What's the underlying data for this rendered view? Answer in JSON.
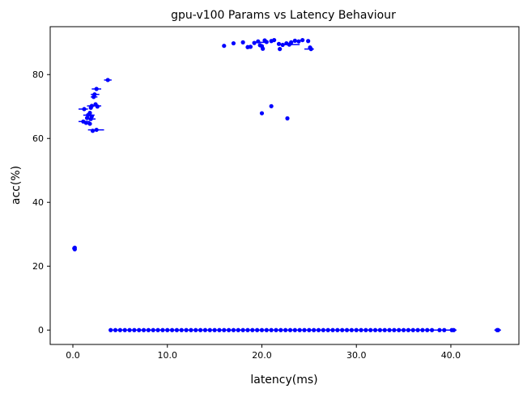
{
  "chart_data": {
    "type": "scatter",
    "title": "gpu-v100 Params vs Latency Behaviour",
    "xlabel": "latency(ms)",
    "ylabel": "acc(%)",
    "xlim": [
      -2.4,
      47.2
    ],
    "ylim": [
      -4.5,
      95.0
    ],
    "xticks": [
      0.0,
      10.0,
      20.0,
      30.0,
      40.0
    ],
    "xtick_labels": [
      "0.0",
      "10.0",
      "20.0",
      "30.0",
      "40.0"
    ],
    "yticks": [
      0,
      20,
      40,
      60,
      80
    ],
    "ytick_labels": [
      "0",
      "20",
      "40",
      "60",
      "80"
    ],
    "grid": false,
    "marker_color": "#0000ff",
    "series": [
      {
        "points": [
          {
            "x": 0.2,
            "y": 25.8
          },
          {
            "x": 0.2,
            "y": 25.3
          },
          {
            "x": 0.15,
            "y": 25.6
          },
          {
            "x": 3.7,
            "y": 78.3
          },
          {
            "x": 2.5,
            "y": 75.5
          },
          {
            "x": 2.3,
            "y": 73.8
          },
          {
            "x": 2.2,
            "y": 73.0
          },
          {
            "x": 2.4,
            "y": 70.7
          },
          {
            "x": 2.0,
            "y": 70.2
          },
          {
            "x": 2.6,
            "y": 70.0
          },
          {
            "x": 1.2,
            "y": 69.2
          },
          {
            "x": 1.9,
            "y": 69.6
          },
          {
            "x": 1.8,
            "y": 68.0
          },
          {
            "x": 1.6,
            "y": 67.3
          },
          {
            "x": 2.0,
            "y": 66.9
          },
          {
            "x": 1.5,
            "y": 66.4
          },
          {
            "x": 1.9,
            "y": 66.1
          },
          {
            "x": 1.1,
            "y": 65.3
          },
          {
            "x": 1.4,
            "y": 64.9
          },
          {
            "x": 1.8,
            "y": 64.6
          },
          {
            "x": 2.5,
            "y": 62.7
          },
          {
            "x": 2.1,
            "y": 62.4
          },
          {
            "x": 16.0,
            "y": 89.0
          },
          {
            "x": 17.0,
            "y": 89.8
          },
          {
            "x": 18.0,
            "y": 90.1
          },
          {
            "x": 18.5,
            "y": 88.6
          },
          {
            "x": 18.8,
            "y": 88.7
          },
          {
            "x": 19.2,
            "y": 89.9
          },
          {
            "x": 19.6,
            "y": 90.4
          },
          {
            "x": 19.8,
            "y": 89.2
          },
          {
            "x": 20.0,
            "y": 88.9
          },
          {
            "x": 20.1,
            "y": 88.1
          },
          {
            "x": 20.3,
            "y": 90.7
          },
          {
            "x": 20.5,
            "y": 90.2
          },
          {
            "x": 21.0,
            "y": 90.5
          },
          {
            "x": 21.3,
            "y": 90.8
          },
          {
            "x": 21.8,
            "y": 89.6
          },
          {
            "x": 21.9,
            "y": 88.0
          },
          {
            "x": 22.2,
            "y": 89.3
          },
          {
            "x": 22.6,
            "y": 89.8
          },
          {
            "x": 22.9,
            "y": 89.4
          },
          {
            "x": 23.1,
            "y": 90.1
          },
          {
            "x": 23.5,
            "y": 90.6
          },
          {
            "x": 23.9,
            "y": 90.4
          },
          {
            "x": 24.3,
            "y": 90.8
          },
          {
            "x": 24.9,
            "y": 90.5
          },
          {
            "x": 25.1,
            "y": 88.5
          },
          {
            "x": 25.2,
            "y": 88.0
          },
          {
            "x": 20.0,
            "y": 67.9
          },
          {
            "x": 21.0,
            "y": 70.1
          },
          {
            "x": 22.7,
            "y": 66.3
          },
          {
            "x": 4.0,
            "y": 0
          },
          {
            "x": 4.5,
            "y": 0
          },
          {
            "x": 5.0,
            "y": 0
          },
          {
            "x": 5.5,
            "y": 0
          },
          {
            "x": 6.0,
            "y": 0
          },
          {
            "x": 6.5,
            "y": 0
          },
          {
            "x": 7.0,
            "y": 0
          },
          {
            "x": 7.5,
            "y": 0
          },
          {
            "x": 8.0,
            "y": 0
          },
          {
            "x": 8.5,
            "y": 0
          },
          {
            "x": 9.0,
            "y": 0
          },
          {
            "x": 9.5,
            "y": 0
          },
          {
            "x": 10.0,
            "y": 0
          },
          {
            "x": 10.5,
            "y": 0
          },
          {
            "x": 11.0,
            "y": 0
          },
          {
            "x": 11.5,
            "y": 0
          },
          {
            "x": 12.0,
            "y": 0
          },
          {
            "x": 12.5,
            "y": 0
          },
          {
            "x": 13.0,
            "y": 0
          },
          {
            "x": 13.5,
            "y": 0
          },
          {
            "x": 14.0,
            "y": 0
          },
          {
            "x": 14.5,
            "y": 0
          },
          {
            "x": 15.0,
            "y": 0
          },
          {
            "x": 15.5,
            "y": 0
          },
          {
            "x": 16.0,
            "y": 0
          },
          {
            "x": 16.5,
            "y": 0
          },
          {
            "x": 17.0,
            "y": 0
          },
          {
            "x": 17.5,
            "y": 0
          },
          {
            "x": 18.0,
            "y": 0
          },
          {
            "x": 18.5,
            "y": 0
          },
          {
            "x": 19.0,
            "y": 0
          },
          {
            "x": 19.5,
            "y": 0
          },
          {
            "x": 20.0,
            "y": 0
          },
          {
            "x": 20.5,
            "y": 0
          },
          {
            "x": 21.0,
            "y": 0
          },
          {
            "x": 21.5,
            "y": 0
          },
          {
            "x": 22.0,
            "y": 0
          },
          {
            "x": 22.5,
            "y": 0
          },
          {
            "x": 23.0,
            "y": 0
          },
          {
            "x": 23.5,
            "y": 0
          },
          {
            "x": 24.0,
            "y": 0
          },
          {
            "x": 24.5,
            "y": 0
          },
          {
            "x": 25.0,
            "y": 0
          },
          {
            "x": 25.5,
            "y": 0
          },
          {
            "x": 26.0,
            "y": 0
          },
          {
            "x": 26.5,
            "y": 0
          },
          {
            "x": 27.0,
            "y": 0
          },
          {
            "x": 27.5,
            "y": 0
          },
          {
            "x": 28.0,
            "y": 0
          },
          {
            "x": 28.5,
            "y": 0
          },
          {
            "x": 29.0,
            "y": 0
          },
          {
            "x": 29.5,
            "y": 0
          },
          {
            "x": 30.0,
            "y": 0
          },
          {
            "x": 30.5,
            "y": 0
          },
          {
            "x": 31.0,
            "y": 0
          },
          {
            "x": 31.5,
            "y": 0
          },
          {
            "x": 32.0,
            "y": 0
          },
          {
            "x": 32.5,
            "y": 0
          },
          {
            "x": 33.0,
            "y": 0
          },
          {
            "x": 33.5,
            "y": 0
          },
          {
            "x": 34.0,
            "y": 0
          },
          {
            "x": 34.5,
            "y": 0
          },
          {
            "x": 35.0,
            "y": 0
          },
          {
            "x": 35.5,
            "y": 0
          },
          {
            "x": 36.0,
            "y": 0
          },
          {
            "x": 36.5,
            "y": 0
          },
          {
            "x": 37.0,
            "y": 0
          },
          {
            "x": 37.5,
            "y": 0
          },
          {
            "x": 38.0,
            "y": 0
          },
          {
            "x": 38.8,
            "y": 0
          },
          {
            "x": 39.3,
            "y": 0
          },
          {
            "x": 40.1,
            "y": 0
          },
          {
            "x": 40.3,
            "y": 0
          },
          {
            "x": 44.9,
            "y": 0
          },
          {
            "x": 45.0,
            "y": 0
          }
        ]
      }
    ],
    "error_bars": [
      {
        "y": 78.3,
        "x_min": 3.3,
        "x_max": 4.1
      },
      {
        "y": 75.5,
        "x_min": 2.0,
        "x_max": 3.0
      },
      {
        "y": 73.8,
        "x_min": 1.9,
        "x_max": 2.8
      },
      {
        "y": 73.0,
        "x_min": 1.9,
        "x_max": 2.6
      },
      {
        "y": 70.2,
        "x_min": 1.5,
        "x_max": 3.0
      },
      {
        "y": 69.2,
        "x_min": 0.6,
        "x_max": 1.6
      },
      {
        "y": 67.3,
        "x_min": 1.1,
        "x_max": 2.3
      },
      {
        "y": 66.1,
        "x_min": 1.4,
        "x_max": 2.4
      },
      {
        "y": 65.3,
        "x_min": 0.6,
        "x_max": 1.8
      },
      {
        "y": 62.7,
        "x_min": 1.6,
        "x_max": 3.3
      },
      {
        "y": 90.1,
        "x_min": 19.0,
        "x_max": 20.6
      },
      {
        "y": 89.4,
        "x_min": 22.0,
        "x_max": 24.0
      },
      {
        "y": 88.0,
        "x_min": 24.5,
        "x_max": 25.5
      },
      {
        "y": 0,
        "x_min": 3.8,
        "x_max": 40.6
      },
      {
        "y": 0,
        "x_min": 44.6,
        "x_max": 45.3
      }
    ]
  }
}
